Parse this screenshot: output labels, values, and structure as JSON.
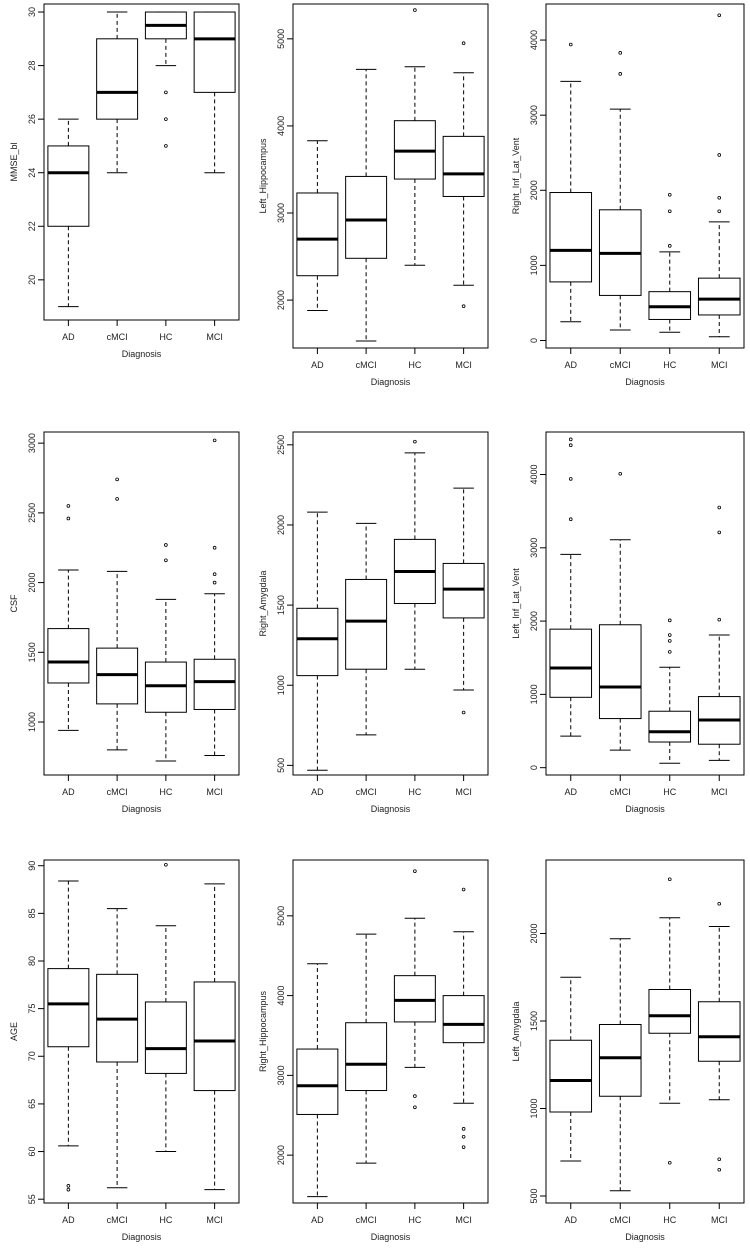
{
  "chart_data": [
    {
      "type": "boxplot",
      "xlabel": "Diagnosis",
      "ylabel": "MMSE_bl",
      "categories": [
        "AD",
        "cMCI",
        "HC",
        "MCI"
      ],
      "ylim": [
        18.5,
        30.3
      ],
      "yticks": [
        20,
        22,
        24,
        26,
        28,
        30
      ],
      "boxes": [
        {
          "min": 19,
          "q1": 22,
          "median": 24,
          "q3": 25,
          "max": 26,
          "outliers": []
        },
        {
          "min": 24,
          "q1": 26,
          "median": 27,
          "q3": 29,
          "max": 30,
          "outliers": []
        },
        {
          "min": 28,
          "q1": 29,
          "median": 29.5,
          "q3": 30,
          "max": 30,
          "outliers": [
            27,
            26,
            25
          ]
        },
        {
          "min": 24,
          "q1": 27,
          "median": 29,
          "q3": 30,
          "max": 30,
          "outliers": []
        }
      ]
    },
    {
      "type": "boxplot",
      "xlabel": "Diagnosis",
      "ylabel": "Left_Hippocampus",
      "categories": [
        "AD",
        "cMCI",
        "HC",
        "MCI"
      ],
      "ylim": [
        1450,
        5400
      ],
      "yticks": [
        2000,
        3000,
        4000,
        5000
      ],
      "boxes": [
        {
          "min": 1880,
          "q1": 2280,
          "median": 2700,
          "q3": 3230,
          "max": 3830,
          "outliers": []
        },
        {
          "min": 1530,
          "q1": 2480,
          "median": 2920,
          "q3": 3420,
          "max": 4650,
          "outliers": []
        },
        {
          "min": 2400,
          "q1": 3390,
          "median": 3710,
          "q3": 4060,
          "max": 4680,
          "outliers": [
            5330
          ]
        },
        {
          "min": 2170,
          "q1": 3190,
          "median": 3450,
          "q3": 3880,
          "max": 4610,
          "outliers": [
            4950,
            1930
          ]
        }
      ]
    },
    {
      "type": "boxplot",
      "xlabel": "Diagnosis",
      "ylabel": "Right_Inf_Lat_Vent",
      "categories": [
        "AD",
        "cMCI",
        "HC",
        "MCI"
      ],
      "ylim": [
        -100,
        4480
      ],
      "yticks": [
        0,
        1000,
        2000,
        3000,
        4000
      ],
      "boxes": [
        {
          "min": 250,
          "q1": 780,
          "median": 1200,
          "q3": 1970,
          "max": 3450,
          "outliers": [
            3940
          ]
        },
        {
          "min": 140,
          "q1": 600,
          "median": 1160,
          "q3": 1740,
          "max": 3080,
          "outliers": [
            3830,
            3550
          ]
        },
        {
          "min": 110,
          "q1": 280,
          "median": 450,
          "q3": 650,
          "max": 1180,
          "outliers": [
            1940,
            1720,
            1260
          ]
        },
        {
          "min": 50,
          "q1": 340,
          "median": 550,
          "q3": 830,
          "max": 1580,
          "outliers": [
            4330,
            2470,
            1900,
            1720
          ]
        }
      ]
    },
    {
      "type": "boxplot",
      "xlabel": "Diagnosis",
      "ylabel": "CSF",
      "categories": [
        "AD",
        "cMCI",
        "HC",
        "MCI"
      ],
      "ylim": [
        620,
        3080
      ],
      "yticks": [
        1000,
        1500,
        2000,
        2500,
        3000
      ],
      "boxes": [
        {
          "min": 940,
          "q1": 1280,
          "median": 1430,
          "q3": 1670,
          "max": 2090,
          "outliers": [
            2550,
            2460
          ]
        },
        {
          "min": 800,
          "q1": 1130,
          "median": 1340,
          "q3": 1530,
          "max": 2080,
          "outliers": [
            2740,
            2600
          ]
        },
        {
          "min": 720,
          "q1": 1070,
          "median": 1260,
          "q3": 1430,
          "max": 1880,
          "outliers": [
            2270,
            2160
          ]
        },
        {
          "min": 760,
          "q1": 1090,
          "median": 1290,
          "q3": 1450,
          "max": 1920,
          "outliers": [
            3020,
            2250,
            2060,
            2000
          ]
        }
      ]
    },
    {
      "type": "boxplot",
      "xlabel": "Diagnosis",
      "ylabel": "Right_Amygdala",
      "categories": [
        "AD",
        "cMCI",
        "HC",
        "MCI"
      ],
      "ylim": [
        440,
        2580
      ],
      "yticks": [
        500,
        1000,
        1500,
        2000,
        2500
      ],
      "boxes": [
        {
          "min": 470,
          "q1": 1060,
          "median": 1290,
          "q3": 1480,
          "max": 2080,
          "outliers": []
        },
        {
          "min": 690,
          "q1": 1100,
          "median": 1400,
          "q3": 1660,
          "max": 2010,
          "outliers": []
        },
        {
          "min": 1100,
          "q1": 1510,
          "median": 1710,
          "q3": 1910,
          "max": 2450,
          "outliers": [
            2520
          ]
        },
        {
          "min": 970,
          "q1": 1420,
          "median": 1600,
          "q3": 1760,
          "max": 2230,
          "outliers": [
            830
          ]
        }
      ]
    },
    {
      "type": "boxplot",
      "xlabel": "Diagnosis",
      "ylabel": "Left_Inf_Lat_Vent",
      "categories": [
        "AD",
        "cMCI",
        "HC",
        "MCI"
      ],
      "ylim": [
        -100,
        4580
      ],
      "yticks": [
        0,
        1000,
        2000,
        3000,
        4000
      ],
      "boxes": [
        {
          "min": 430,
          "q1": 960,
          "median": 1360,
          "q3": 1890,
          "max": 2910,
          "outliers": [
            4480,
            4400,
            3940,
            3390
          ]
        },
        {
          "min": 240,
          "q1": 670,
          "median": 1100,
          "q3": 1950,
          "max": 3110,
          "outliers": [
            4010
          ]
        },
        {
          "min": 60,
          "q1": 350,
          "median": 490,
          "q3": 770,
          "max": 1370,
          "outliers": [
            2010,
            1810,
            1730,
            1580
          ]
        },
        {
          "min": 100,
          "q1": 320,
          "median": 650,
          "q3": 970,
          "max": 1810,
          "outliers": [
            3550,
            3210,
            2020
          ]
        }
      ]
    },
    {
      "type": "boxplot",
      "xlabel": "Diagnosis",
      "ylabel": "AGE",
      "categories": [
        "AD",
        "cMCI",
        "HC",
        "MCI"
      ],
      "ylim": [
        54.6,
        90.6
      ],
      "yticks": [
        55,
        60,
        65,
        70,
        75,
        80,
        85,
        90
      ],
      "boxes": [
        {
          "min": 60.6,
          "q1": 71,
          "median": 75.5,
          "q3": 79.2,
          "max": 88.4,
          "outliers": [
            56.4,
            56
          ]
        },
        {
          "min": 56.2,
          "q1": 69.4,
          "median": 73.9,
          "q3": 78.6,
          "max": 85.5,
          "outliers": []
        },
        {
          "min": 60,
          "q1": 68.2,
          "median": 70.8,
          "q3": 75.7,
          "max": 83.7,
          "outliers": [
            90.1
          ]
        },
        {
          "min": 56,
          "q1": 66.4,
          "median": 71.6,
          "q3": 77.8,
          "max": 88.1,
          "outliers": []
        }
      ]
    },
    {
      "type": "boxplot",
      "xlabel": "Diagnosis",
      "ylabel": "Right_Hippocampus",
      "categories": [
        "AD",
        "cMCI",
        "HC",
        "MCI"
      ],
      "ylim": [
        1400,
        5700
      ],
      "yticks": [
        2000,
        3000,
        4000,
        5000
      ],
      "boxes": [
        {
          "min": 1480,
          "q1": 2510,
          "median": 2870,
          "q3": 3330,
          "max": 4400,
          "outliers": []
        },
        {
          "min": 1900,
          "q1": 2810,
          "median": 3140,
          "q3": 3660,
          "max": 4770,
          "outliers": []
        },
        {
          "min": 3100,
          "q1": 3670,
          "median": 3940,
          "q3": 4250,
          "max": 4970,
          "outliers": [
            5560,
            2740,
            2600
          ]
        },
        {
          "min": 2650,
          "q1": 3410,
          "median": 3640,
          "q3": 4000,
          "max": 4800,
          "outliers": [
            5330,
            2330,
            2230,
            2100
          ]
        }
      ]
    },
    {
      "type": "boxplot",
      "xlabel": "Diagnosis",
      "ylabel": "Left_Amygdala",
      "categories": [
        "AD",
        "cMCI",
        "HC",
        "MCI"
      ],
      "ylim": [
        460,
        2420
      ],
      "yticks": [
        500,
        1000,
        1500,
        2000
      ],
      "boxes": [
        {
          "min": 700,
          "q1": 980,
          "median": 1160,
          "q3": 1390,
          "max": 1750,
          "outliers": []
        },
        {
          "min": 530,
          "q1": 1070,
          "median": 1290,
          "q3": 1480,
          "max": 1970,
          "outliers": []
        },
        {
          "min": 1030,
          "q1": 1430,
          "median": 1530,
          "q3": 1680,
          "max": 2090,
          "outliers": [
            2310,
            690
          ]
        },
        {
          "min": 1050,
          "q1": 1270,
          "median": 1410,
          "q3": 1610,
          "max": 2040,
          "outliers": [
            2170,
            710,
            650
          ]
        }
      ]
    }
  ]
}
